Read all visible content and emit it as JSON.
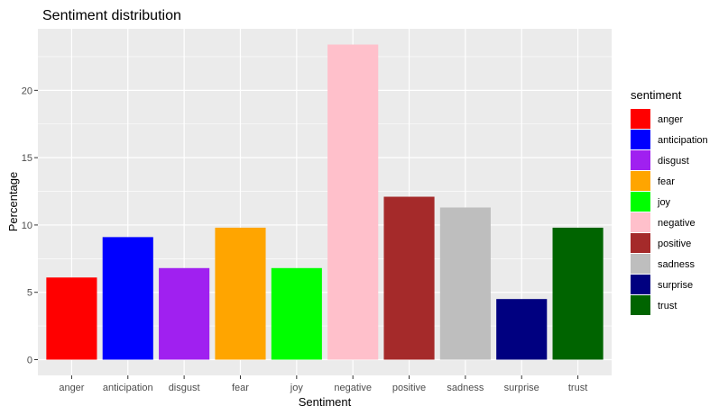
{
  "chart_data": {
    "type": "bar",
    "title": "Sentiment distribution",
    "xlabel": "Sentiment",
    "ylabel": "Percentage",
    "categories": [
      "anger",
      "anticipation",
      "disgust",
      "fear",
      "joy",
      "negative",
      "positive",
      "sadness",
      "surprise",
      "trust"
    ],
    "values": [
      6.1,
      9.1,
      6.8,
      9.8,
      6.8,
      23.4,
      12.1,
      11.3,
      4.5,
      9.8
    ],
    "colors": [
      "#FF0000",
      "#0000FF",
      "#A020F0",
      "#FFA500",
      "#00FF00",
      "#FFC0CB",
      "#A52A2A",
      "#BEBEBE",
      "#000080",
      "#006400"
    ],
    "yticks": [
      0,
      5,
      10,
      15,
      20
    ],
    "ylim": [
      -1.17,
      24.57
    ],
    "grid": true,
    "panel_background": "#EBEBEB",
    "grid_color": "#FFFFFF",
    "legend": {
      "title": "sentiment",
      "position": "right",
      "entries": [
        "anger",
        "anticipation",
        "disgust",
        "fear",
        "joy",
        "negative",
        "positive",
        "sadness",
        "surprise",
        "trust"
      ]
    }
  }
}
